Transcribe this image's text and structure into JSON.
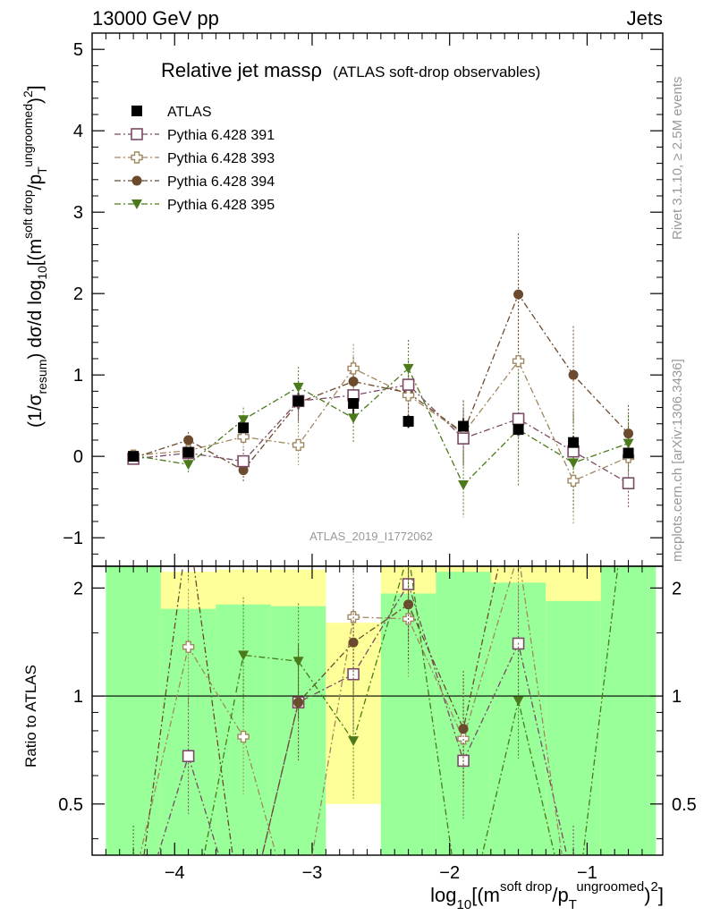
{
  "header": {
    "left": "13000 GeV pp",
    "right": "Jets"
  },
  "side_text": {
    "rivet": "Rivet 3.1.10, ≥ 2.5M events",
    "mcplots": "mcplots.cern.ch [arXiv:1306.3436]"
  },
  "chart_data": {
    "type": "scatter",
    "title": "Relative jet massρ",
    "subtitle": "(ATLAS soft-drop observables)",
    "analysis_id": "ATLAS_2019_I1772062",
    "xlabel": "log10[(m^soft drop/p_T^ungroomed)^2]",
    "ylabel_main": "(1/σresum) dσ/d log10[(m^soft drop/p_T^ungroomed)^2]",
    "ylabel_ratio": "Ratio to ATLAS",
    "xlim": [
      -4.6,
      -0.45
    ],
    "ylim_main": [
      -1.35,
      5.2
    ],
    "ylim_ratio": [
      0.36,
      2.3
    ],
    "ratio_scale": "log",
    "x_ticks": [
      -4,
      -3,
      -2,
      -1
    ],
    "x_tick_labels": [
      "−4",
      "−3",
      "−2",
      "−1"
    ],
    "y_ticks_main": [
      -1,
      0,
      1,
      2,
      3,
      4,
      5
    ],
    "y_tick_labels_main": [
      "−1",
      "0",
      "1",
      "2",
      "3",
      "4",
      "5"
    ],
    "y_ticks_ratio": [
      0.5,
      1,
      2
    ],
    "y_tick_labels_ratio": [
      "0.5",
      "1",
      "2"
    ],
    "x": [
      -4.3,
      -3.9,
      -3.5,
      -3.1,
      -2.7,
      -2.3,
      -1.9,
      -1.5,
      -1.1,
      -0.7
    ],
    "legend_position": "top-left",
    "series": [
      {
        "name": "ATLAS",
        "marker": "filled-square",
        "color": "#000000",
        "values": [
          0.0,
          0.05,
          0.35,
          0.68,
          0.65,
          0.43,
          0.37,
          0.33,
          0.17,
          0.04
        ],
        "errors": [
          0.03,
          0.06,
          0.08,
          0.1,
          0.15,
          0.08,
          0.1,
          0.08,
          0.08,
          0.06
        ]
      },
      {
        "name": "Pythia 6.428 391",
        "marker": "open-square",
        "color": "#7b4a66",
        "values": [
          -0.03,
          0.04,
          -0.06,
          0.68,
          0.75,
          0.88,
          0.22,
          0.46,
          0.06,
          -0.33
        ],
        "errors": [
          0.03,
          0.1,
          0.15,
          0.25,
          0.3,
          0.3,
          0.35,
          0.7,
          0.5,
          0.3
        ]
      },
      {
        "name": "Pythia 6.428 393",
        "marker": "open-cross",
        "color": "#a08860",
        "values": [
          0.01,
          0.07,
          0.24,
          0.14,
          1.08,
          0.75,
          0.28,
          1.17,
          -0.3,
          -0.01
        ],
        "errors": [
          0.03,
          0.1,
          0.15,
          0.25,
          0.3,
          0.35,
          0.4,
          1.0,
          0.55,
          0.4
        ]
      },
      {
        "name": "Pythia 6.428 394",
        "marker": "filled-circle",
        "color": "#6b4a2e",
        "values": [
          -0.02,
          0.2,
          -0.17,
          0.66,
          0.92,
          0.78,
          0.29,
          1.99,
          1.0,
          0.28
        ],
        "errors": [
          0.03,
          0.1,
          0.15,
          0.25,
          0.3,
          0.35,
          0.4,
          0.75,
          0.6,
          0.35
        ]
      },
      {
        "name": "Pythia 6.428 395",
        "marker": "filled-triangle-down",
        "color": "#4a7a1a",
        "values": [
          0.01,
          -0.1,
          0.45,
          0.85,
          0.47,
          1.08,
          -0.35,
          0.33,
          -0.08,
          0.16
        ],
        "errors": [
          0.03,
          0.1,
          0.15,
          0.25,
          0.3,
          0.35,
          0.4,
          0.7,
          0.6,
          0.35
        ]
      }
    ],
    "ratio_bands": [
      {
        "x": [
          -4.5,
          -4.1
        ],
        "green": [
          0.36,
          2.3
        ],
        "yellow": [
          0.36,
          2.3
        ]
      },
      {
        "x": [
          -4.1,
          -3.7
        ],
        "green": [
          0.36,
          1.75
        ],
        "yellow": [
          0.36,
          2.22
        ]
      },
      {
        "x": [
          -3.7,
          -3.3
        ],
        "green": [
          0.36,
          1.8
        ],
        "yellow": [
          0.36,
          2.25
        ]
      },
      {
        "x": [
          -3.3,
          -2.9
        ],
        "green": [
          0.36,
          1.78
        ],
        "yellow": [
          0.36,
          2.25
        ]
      },
      {
        "x": [
          -2.9,
          -2.5
        ],
        "green": [
          0.36,
          0.36
        ],
        "yellow": [
          0.5,
          1.6
        ]
      },
      {
        "x": [
          -2.5,
          -2.1
        ],
        "green": [
          0.36,
          1.93
        ],
        "yellow": [
          0.36,
          2.3
        ]
      },
      {
        "x": [
          -2.1,
          -1.7
        ],
        "green": [
          0.36,
          2.22
        ],
        "yellow": [
          0.36,
          2.3
        ]
      },
      {
        "x": [
          -1.7,
          -1.3
        ],
        "green": [
          0.36,
          2.07
        ],
        "yellow": [
          0.36,
          2.3
        ]
      },
      {
        "x": [
          -1.3,
          -0.9
        ],
        "green": [
          0.36,
          1.84
        ],
        "yellow": [
          0.36,
          2.3
        ]
      },
      {
        "x": [
          -0.9,
          -0.5
        ],
        "green": [
          0.36,
          2.3
        ],
        "yellow": [
          0.36,
          2.3
        ]
      }
    ],
    "ratio_series": [
      {
        "name": "Pythia 6.428 391",
        "values": [
          0.2,
          0.68,
          0.1,
          0.96,
          1.15,
          2.05,
          0.66,
          1.4,
          0.3,
          0.1
        ]
      },
      {
        "name": "Pythia 6.428 393",
        "values": [
          0.3,
          1.37,
          0.77,
          0.2,
          1.66,
          1.64,
          0.76,
          2.5,
          0.1,
          0.1
        ]
      },
      {
        "name": "Pythia 6.428 394",
        "values": [
          0.2,
          3.0,
          0.1,
          0.96,
          1.41,
          1.8,
          0.81,
          6.0,
          5.9,
          6.0
        ]
      },
      {
        "name": "Pythia 6.428 395",
        "values": [
          0.3,
          0.1,
          1.3,
          1.25,
          0.75,
          2.5,
          0.1,
          0.97,
          0.1,
          4.0
        ]
      }
    ]
  }
}
